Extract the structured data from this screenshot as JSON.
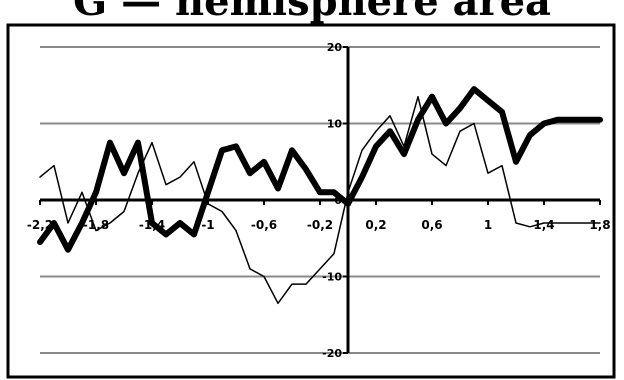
{
  "chart_data": {
    "type": "line",
    "title": "G — hemisphere area",
    "xlabel": "",
    "ylabel": "",
    "xlim": [
      -2.2,
      1.8
    ],
    "ylim": [
      -20,
      20
    ],
    "grid": true,
    "x_ticks": [
      "-2,2",
      "-1,8",
      "-1,4",
      "-1",
      "-0,6",
      "-0,2",
      "0,2",
      "0,6",
      "1",
      "1,4",
      "1,8"
    ],
    "x_tick_values": [
      -2.2,
      -1.8,
      -1.4,
      -1.0,
      -0.6,
      -0.2,
      0.2,
      0.6,
      1.0,
      1.4,
      1.8
    ],
    "y_ticks": [
      "-20",
      "-10",
      "0",
      "10",
      "20"
    ],
    "y_tick_values": [
      -20,
      -10,
      0,
      10,
      20
    ],
    "series": [
      {
        "color": "#000000",
        "style": "thin",
        "x": [
          -2.2,
          -2.1,
          -2.0,
          -1.9,
          -1.8,
          -1.7,
          -1.6,
          -1.5,
          -1.4,
          -1.3,
          -1.2,
          -1.1,
          -1.0,
          -0.9,
          -0.8,
          -0.7,
          -0.6,
          -0.5,
          -0.4,
          -0.3,
          -0.2,
          -0.1,
          0.0,
          0.1,
          0.2,
          0.3,
          0.4,
          0.5,
          0.6,
          0.7,
          0.8,
          0.9,
          1.0,
          1.1,
          1.2,
          1.3,
          1.4,
          1.5,
          1.6,
          1.7,
          1.8
        ],
        "y": [
          3,
          4.5,
          -3,
          1,
          -4,
          -3,
          -1.5,
          3.5,
          7.5,
          2,
          3,
          5,
          -0.5,
          -1.5,
          -4,
          -9,
          -10,
          -13.5,
          -11,
          -11,
          -9,
          -7,
          1,
          6.5,
          9,
          11,
          7,
          13.5,
          6,
          4.5,
          9,
          10,
          3.5,
          4.5,
          -3,
          -3.5,
          -3,
          -3,
          -3,
          -3,
          -3
        ]
      },
      {
        "color": "#000000",
        "style": "thick",
        "x": [
          -2.2,
          -2.1,
          -2.0,
          -1.9,
          -1.8,
          -1.7,
          -1.6,
          -1.5,
          -1.4,
          -1.3,
          -1.2,
          -1.1,
          -1.0,
          -0.9,
          -0.8,
          -0.7,
          -0.6,
          -0.5,
          -0.4,
          -0.3,
          -0.2,
          -0.1,
          0.0,
          0.1,
          0.2,
          0.3,
          0.4,
          0.5,
          0.6,
          0.7,
          0.8,
          0.9,
          1.0,
          1.1,
          1.2,
          1.3,
          1.4,
          1.5,
          1.6,
          1.7,
          1.8
        ],
        "y": [
          -5.5,
          -3,
          -6.5,
          -3,
          1,
          7.5,
          3.5,
          7.5,
          -3,
          -4.5,
          -3,
          -4.5,
          1,
          6.5,
          7,
          3.5,
          5,
          1.5,
          6.5,
          4,
          1,
          1,
          -0.5,
          3,
          7,
          9,
          6,
          10.5,
          13.5,
          10,
          12,
          14.5,
          13,
          11.5,
          5,
          8.5,
          10,
          10.5,
          10.5,
          10.5,
          10.5
        ]
      }
    ]
  }
}
